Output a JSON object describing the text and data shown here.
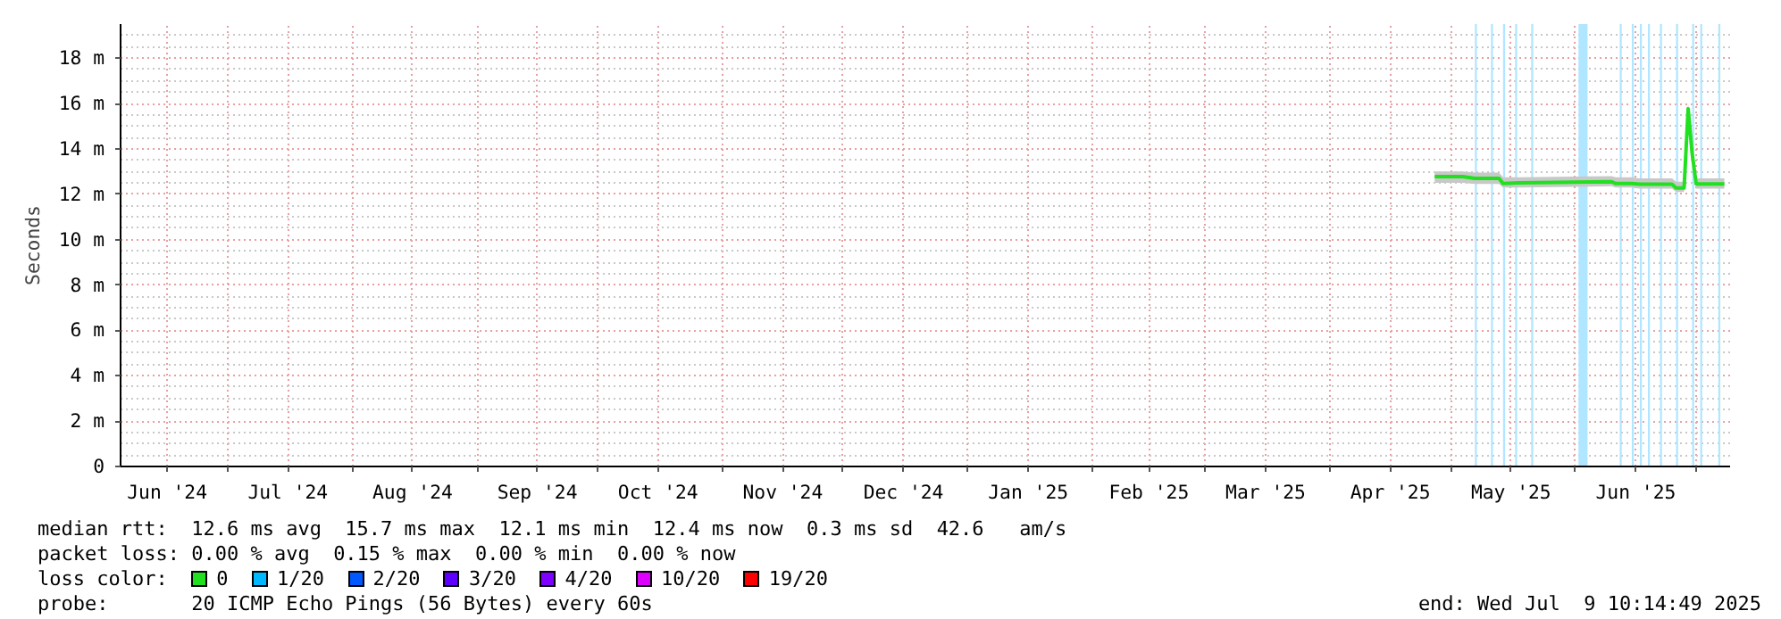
{
  "chart_data": {
    "type": "line",
    "ylabel": "Seconds",
    "x": [
      "2025-04-27",
      "2025-05-04",
      "2025-05-07",
      "2025-05-13",
      "2025-05-14",
      "2025-05-18",
      "2025-06-10",
      "2025-06-11",
      "2025-06-15",
      "2025-06-17",
      "2025-06-25",
      "2025-06-26",
      "2025-06-28",
      "2025-06-29",
      "2025-06-30",
      "2025-07-01",
      "2025-07-08"
    ],
    "series": [
      {
        "name": "0",
        "color": "#20e020",
        "values": [
          12.78,
          12.78,
          12.7,
          12.7,
          12.47,
          12.5,
          12.55,
          12.47,
          12.47,
          12.44,
          12.44,
          12.28,
          12.28,
          15.77,
          13.8,
          12.45,
          12.45
        ],
        "lower": [
          12.5,
          12.5,
          12.45,
          12.45,
          12.3,
          12.3,
          12.35,
          12.3,
          12.3,
          12.25,
          12.25,
          12.1,
          12.1,
          15.5,
          13.5,
          12.25,
          12.25
        ],
        "upper": [
          13.0,
          13.0,
          12.95,
          12.95,
          12.75,
          12.75,
          12.8,
          12.75,
          12.75,
          12.7,
          12.7,
          12.55,
          12.55,
          16.0,
          14.0,
          12.7,
          12.7
        ]
      },
      {
        "name": "1/20",
        "color": "#00b8ff",
        "values": [
          null,
          null,
          null,
          null,
          null,
          null,
          null,
          null,
          null,
          null,
          null,
          null,
          null,
          null,
          null,
          null,
          null
        ]
      },
      {
        "name": "2/20",
        "color": "#0059ff",
        "values": [
          null,
          null,
          null,
          null,
          null,
          null,
          null,
          null,
          null,
          null,
          null,
          null,
          null,
          null,
          null,
          null,
          null
        ]
      },
      {
        "name": "3/20",
        "color": "#5e00ff",
        "values": [
          null,
          null,
          null,
          null,
          null,
          null,
          null,
          null,
          null,
          null,
          null,
          null,
          null,
          null,
          null,
          null,
          null
        ]
      },
      {
        "name": "4/20",
        "color": "#7e00ff",
        "values": [
          null,
          null,
          null,
          null,
          null,
          null,
          null,
          null,
          null,
          null,
          null,
          null,
          null,
          null,
          null,
          null,
          null
        ]
      },
      {
        "name": "10/20",
        "color": "#dd00ff",
        "values": [
          null,
          null,
          null,
          null,
          null,
          null,
          null,
          null,
          null,
          null,
          null,
          null,
          null,
          null,
          null,
          null,
          null
        ]
      },
      {
        "name": "19/20",
        "color": "#ff0000",
        "values": [
          null,
          null,
          null,
          null,
          null,
          null,
          null,
          null,
          null,
          null,
          null,
          null,
          null,
          null,
          null,
          null,
          null
        ]
      }
    ],
    "legend": "bottom",
    "legend_title": "loss color:",
    "xlim": [
      "2024-06-04T10:14",
      "2025-07-09T10:14"
    ],
    "xticks": [
      {
        "value": "2024-06-16",
        "label": "Jun '24"
      },
      {
        "value": "2024-07-01",
        "label": null
      },
      {
        "value": "2024-07-16",
        "label": "Jul '24"
      },
      {
        "value": "2024-08-01",
        "label": null
      },
      {
        "value": "2024-08-16",
        "label": "Aug '24"
      },
      {
        "value": "2024-09-01",
        "label": null
      },
      {
        "value": "2024-09-16",
        "label": "Sep '24"
      },
      {
        "value": "2024-10-01",
        "label": null
      },
      {
        "value": "2024-10-16",
        "label": "Oct '24"
      },
      {
        "value": "2024-11-01",
        "label": null
      },
      {
        "value": "2024-11-16",
        "label": "Nov '24"
      },
      {
        "value": "2024-12-01",
        "label": null
      },
      {
        "value": "2024-12-16",
        "label": "Dec '24"
      },
      {
        "value": "2025-01-01",
        "label": null
      },
      {
        "value": "2025-01-16",
        "label": "Jan '25"
      },
      {
        "value": "2025-02-01",
        "label": null
      },
      {
        "value": "2025-02-15",
        "label": "Feb '25"
      },
      {
        "value": "2025-03-01",
        "label": null
      },
      {
        "value": "2025-03-16",
        "label": "Mar '25"
      },
      {
        "value": "2025-04-01",
        "label": null
      },
      {
        "value": "2025-04-16",
        "label": "Apr '25"
      },
      {
        "value": "2025-05-01",
        "label": null
      },
      {
        "value": "2025-05-16",
        "label": "May '25"
      },
      {
        "value": "2025-06-01",
        "label": null
      },
      {
        "value": "2025-06-16",
        "label": "Jun '25"
      },
      {
        "value": "2025-07-01",
        "label": null
      }
    ],
    "ylim": [
      0,
      19.5
    ],
    "yticks": [
      0,
      {
        "value": 2,
        "label": "2 m"
      },
      {
        "value": 4,
        "label": "4 m"
      },
      {
        "value": 6,
        "label": "6 m"
      },
      {
        "value": 8,
        "label": "8 m"
      },
      {
        "value": 10,
        "label": "10 m"
      },
      {
        "value": 12,
        "label": "12 m"
      },
      {
        "value": 14,
        "label": "14 m"
      },
      {
        "value": 16,
        "label": "16 m"
      },
      {
        "value": 18,
        "label": "18 m"
      }
    ],
    "grid": true,
    "bands": [
      {
        "axis": "x",
        "from": "2025-05-07T00:00",
        "to": "2025-05-07T12:00",
        "color": "#b0e6ff"
      },
      {
        "axis": "x",
        "from": "2025-05-11T00:00",
        "to": "2025-05-11T12:00",
        "color": "#b0e6ff"
      },
      {
        "axis": "x",
        "from": "2025-05-14T00:00",
        "to": "2025-05-14T12:00",
        "color": "#b0e6ff"
      },
      {
        "axis": "x",
        "from": "2025-05-17T00:00",
        "to": "2025-05-17T12:00",
        "color": "#b0e6ff"
      },
      {
        "axis": "x",
        "from": "2025-05-21T00:00",
        "to": "2025-05-21T12:00",
        "color": "#b0e6ff"
      },
      {
        "axis": "x",
        "from": "2025-06-01T18:00",
        "to": "2025-06-04T00:00",
        "color": "#b0e6ff"
      },
      {
        "axis": "x",
        "from": "2025-06-12T00:00",
        "to": "2025-06-12T12:00",
        "color": "#b0e6ff"
      },
      {
        "axis": "x",
        "from": "2025-06-15T00:00",
        "to": "2025-06-15T12:00",
        "color": "#b0e6ff"
      },
      {
        "axis": "x",
        "from": "2025-06-17T00:00",
        "to": "2025-06-17T12:00",
        "color": "#b0e6ff"
      },
      {
        "axis": "x",
        "from": "2025-06-19T00:00",
        "to": "2025-06-19T12:00",
        "color": "#b0e6ff"
      },
      {
        "axis": "x",
        "from": "2025-06-22T00:00",
        "to": "2025-06-22T12:00",
        "color": "#b0e6ff"
      },
      {
        "axis": "x",
        "from": "2025-06-26T00:00",
        "to": "2025-06-26T12:00",
        "color": "#b0e6ff"
      },
      {
        "axis": "x",
        "from": "2025-06-30T00:00",
        "to": "2025-06-30T12:00",
        "color": "#b0e6ff"
      },
      {
        "axis": "x",
        "from": "2025-07-02T00:00",
        "to": "2025-07-02T12:00",
        "color": "#b0e6ff"
      },
      {
        "axis": "x",
        "from": "2025-07-06T12:00",
        "to": "2025-07-07T00:00",
        "color": "#b0e6ff"
      }
    ],
    "annotations": [
      "median rtt:  12.6 ms avg  15.7 ms max  12.1 ms min  12.4 ms now  0.3 ms sd  42.6   am/s",
      "packet loss: 0.00 % avg  0.15 % max  0.00 % min  0.00 % now",
      "probe:       20 ICMP Echo Pings (56 Bytes) every 60s",
      "end: Wed Jul  9 10:14:49 2025"
    ]
  }
}
